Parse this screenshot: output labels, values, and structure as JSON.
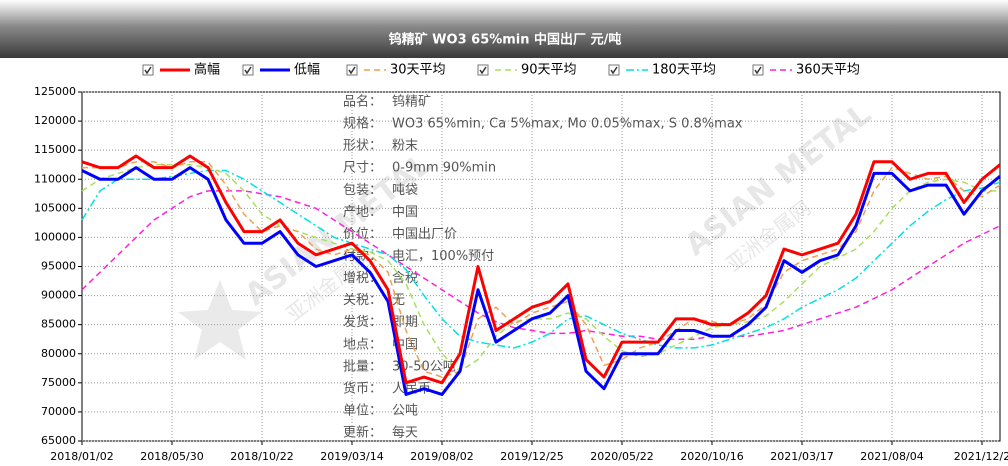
{
  "chart_data": {
    "type": "line",
    "title": "钨精矿 WO3 65%min 中国出厂 元/吨",
    "categories": [
      "2018/01/02",
      null,
      null,
      null,
      null,
      "2018/05/30",
      null,
      null,
      null,
      null,
      "2018/10/22",
      null,
      null,
      null,
      null,
      "2019/03/14",
      null,
      null,
      null,
      null,
      "2019/08/02",
      null,
      null,
      null,
      null,
      "2019/12/25",
      null,
      null,
      null,
      null,
      "2020/05/22",
      null,
      null,
      null,
      null,
      "2020/10/16",
      null,
      null,
      null,
      null,
      "2021/03/17",
      null,
      null,
      null,
      null,
      "2021/08/04",
      null,
      null,
      null,
      null,
      "2021/12/2",
      null
    ],
    "series": [
      {
        "name": "高幅",
        "color": "#ff0000",
        "width": 3,
        "style": "solid",
        "values": [
          113000,
          112000,
          112000,
          114000,
          112000,
          112000,
          114000,
          112000,
          106000,
          101000,
          101000,
          103000,
          99000,
          97000,
          98000,
          99000,
          96000,
          91000,
          75000,
          76000,
          75000,
          80000,
          95000,
          84000,
          86000,
          88000,
          89000,
          92000,
          79000,
          76000,
          82000,
          82000,
          82000,
          86000,
          86000,
          85000,
          85000,
          87000,
          90000,
          98000,
          97000,
          98000,
          99000,
          104000,
          113000,
          113000,
          110000,
          111000,
          111000,
          106000,
          110000,
          112500
        ]
      },
      {
        "name": "低幅",
        "color": "#0000ff",
        "width": 3,
        "style": "solid",
        "values": [
          111500,
          110000,
          110000,
          112000,
          110000,
          110000,
          112000,
          110000,
          103000,
          99000,
          99000,
          101000,
          97000,
          95000,
          96000,
          97000,
          94000,
          89000,
          73000,
          74000,
          73000,
          77000,
          91000,
          82000,
          84000,
          86000,
          87000,
          90000,
          77000,
          74000,
          80000,
          80000,
          80000,
          84000,
          84000,
          83000,
          83000,
          85000,
          88000,
          96000,
          94000,
          96000,
          97000,
          102000,
          111000,
          111000,
          108000,
          109000,
          109000,
          104000,
          108000,
          110500
        ]
      },
      {
        "name": "30天平均",
        "color": "#f0a050",
        "width": 1.5,
        "style": "dashed",
        "values": [
          112000,
          112000,
          112000,
          113000,
          113000,
          112000,
          113000,
          113000,
          109000,
          104000,
          101000,
          102000,
          101000,
          98000,
          97000,
          98000,
          97000,
          94000,
          84000,
          77000,
          76000,
          77000,
          86000,
          88000,
          85000,
          87000,
          88000,
          89000,
          85000,
          78000,
          79000,
          81000,
          82000,
          84000,
          86000,
          85500,
          85000,
          86000,
          88500,
          94000,
          96000,
          97000,
          98000,
          101000,
          108000,
          112000,
          111000,
          110000,
          110500,
          108000,
          107000,
          109000
        ]
      },
      {
        "name": "90天平均",
        "color": "#a8e060",
        "width": 1.5,
        "style": "dashed",
        "values": [
          108000,
          110000,
          111000,
          112000,
          112500,
          112500,
          112500,
          112000,
          111000,
          108000,
          104000,
          102000,
          101000,
          100000,
          99000,
          98000,
          97500,
          96000,
          92000,
          85000,
          80000,
          77000,
          79000,
          83000,
          85500,
          86000,
          86000,
          87000,
          86000,
          83000,
          80500,
          79500,
          80000,
          81500,
          83000,
          84500,
          85000,
          85500,
          86500,
          89000,
          92000,
          95000,
          96500,
          98000,
          101000,
          105000,
          108000,
          109500,
          110000,
          109500,
          108000,
          108000
        ]
      },
      {
        "name": "180天平均",
        "color": "#00e0e8",
        "width": 1.5,
        "style": "dashdot",
        "values": [
          103000,
          108000,
          110000,
          110000,
          110000,
          110500,
          111000,
          111500,
          111500,
          110000,
          108000,
          106000,
          104000,
          102000,
          100000,
          99000,
          98000,
          97000,
          94500,
          90000,
          86000,
          83000,
          82000,
          81500,
          81000,
          82000,
          83500,
          86000,
          86500,
          85000,
          83500,
          82500,
          81500,
          81000,
          81000,
          81500,
          82500,
          83500,
          84500,
          86000,
          88000,
          89500,
          91000,
          93000,
          96000,
          99000,
          102000,
          104500,
          106500,
          108000,
          108500,
          109500
        ]
      },
      {
        "name": "360天平均",
        "color": "#ff20e0",
        "width": 1.5,
        "style": "dashed",
        "values": [
          91000,
          94000,
          97000,
          100000,
          103000,
          105000,
          107000,
          108000,
          108000,
          108000,
          107500,
          107000,
          106000,
          105000,
          103000,
          101000,
          99000,
          97000,
          95000,
          93000,
          91000,
          89000,
          87000,
          85500,
          84500,
          84000,
          83500,
          83500,
          84000,
          83500,
          83000,
          83000,
          82500,
          82500,
          82500,
          83000,
          83000,
          83000,
          83500,
          84000,
          85000,
          86000,
          87000,
          88000,
          89500,
          91000,
          93000,
          95000,
          97000,
          99000,
          100500,
          102000
        ]
      }
    ],
    "ylim": [
      65000,
      125000
    ],
    "yticks": [
      65000,
      70000,
      75000,
      80000,
      85000,
      90000,
      95000,
      100000,
      105000,
      110000,
      115000,
      120000,
      125000
    ],
    "grid": true,
    "specs": [
      [
        "品名：",
        "钨精矿"
      ],
      [
        "规格：",
        "WO3 65%min, Ca 5%max, Mo 0.05%max, S 0.8%max"
      ],
      [
        "形状：",
        "粉末"
      ],
      [
        "尺寸：",
        "0-9mm 90%min"
      ],
      [
        "包装：",
        "吨袋"
      ],
      [
        "产地：",
        "中国"
      ],
      [
        "价位：",
        "中国出厂价"
      ],
      [
        "付款：",
        "电汇，100%预付"
      ],
      [
        "增税：",
        "含税"
      ],
      [
        "关税：",
        "无"
      ],
      [
        "发货：",
        "即期"
      ],
      [
        "地点：",
        "中国"
      ],
      [
        "批量：",
        "30-50公吨"
      ],
      [
        "货币：",
        "人民币"
      ],
      [
        "单位：",
        "公吨"
      ],
      [
        "更新：",
        "每天"
      ]
    ],
    "watermark": [
      "ASIAN METAL",
      "亚洲金属网"
    ]
  }
}
